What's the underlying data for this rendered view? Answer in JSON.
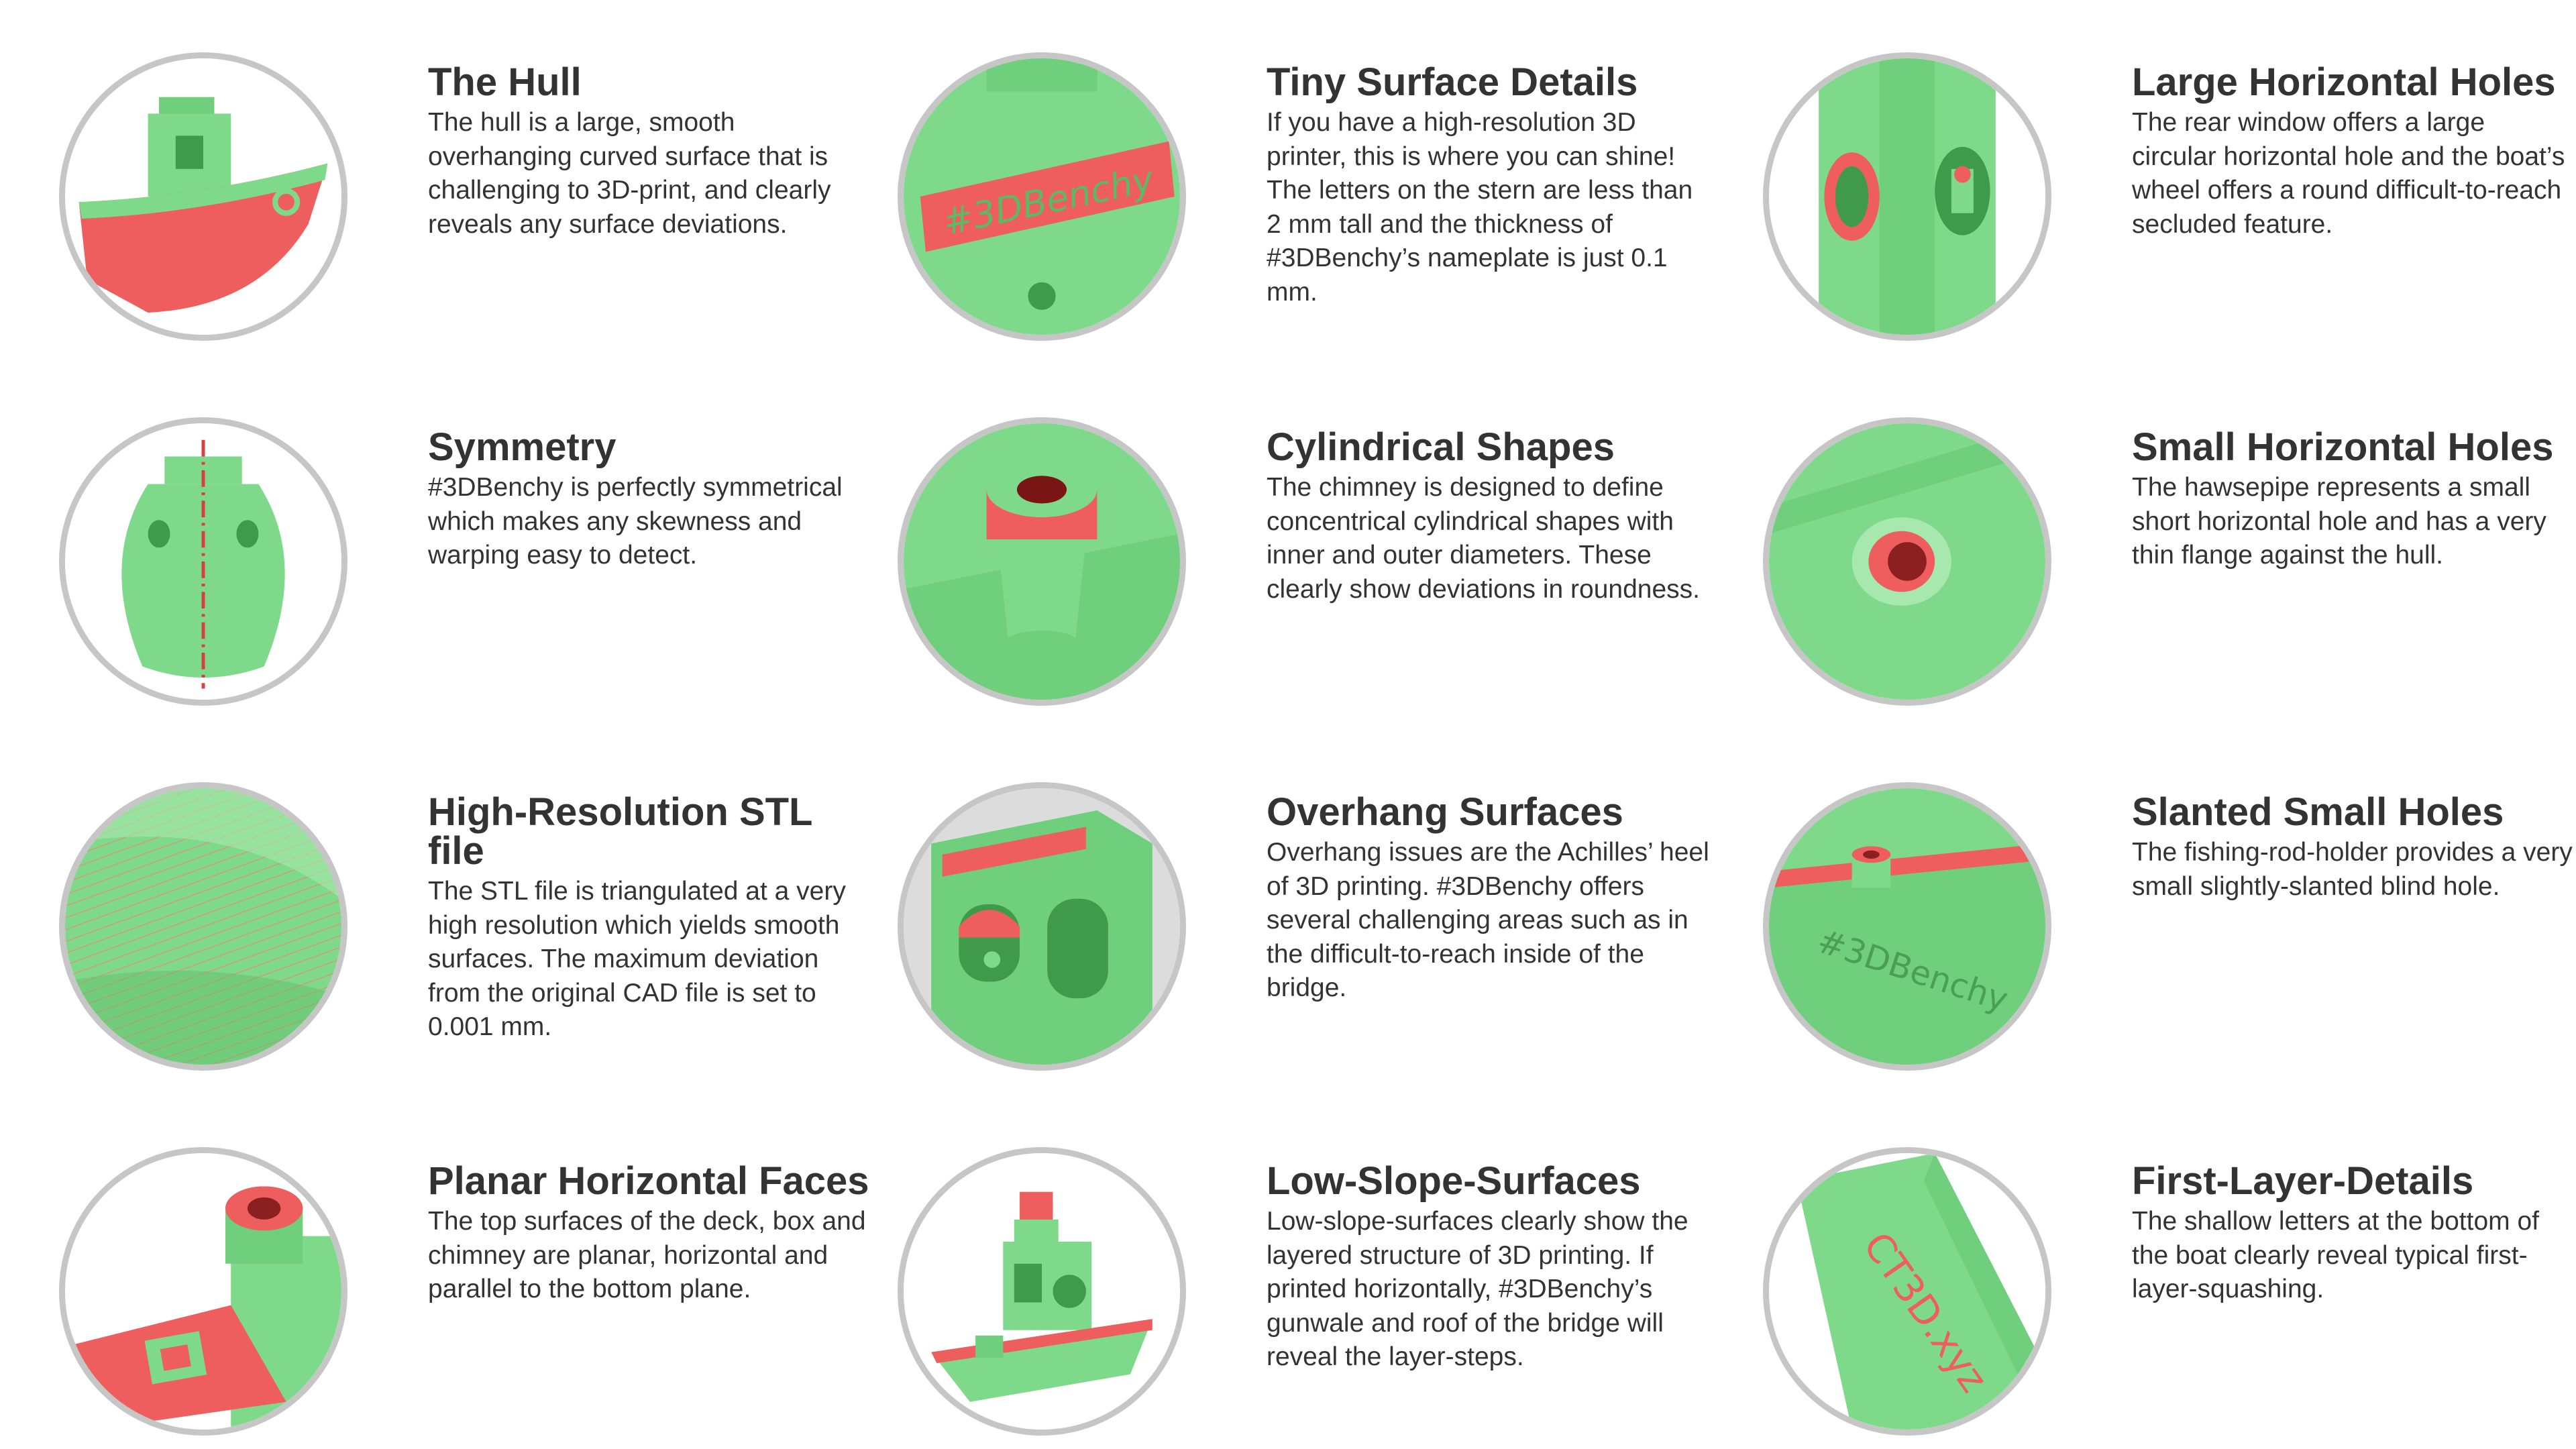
{
  "features": [
    {
      "title": "The Hull",
      "description": "The hull is a large, smooth overhanging curved surface that is challenging to 3D-print, and clearly reveals any surface deviations.",
      "icon": "hull-icon"
    },
    {
      "title": "Tiny Surface Details",
      "description": "If you have a high-resolution 3D printer, this is where you can shine! The letters on the stern are less than 2 mm tall and the thickness of #3DBenchy’s nameplate is just 0.1 mm.",
      "icon": "nameplate-icon",
      "label": "#3DBenchy"
    },
    {
      "title": "Large Horizontal Holes",
      "description": "The rear window offers a large circular horizontal hole and the boat’s wheel offers a round difficult-to-reach secluded feature.",
      "icon": "large-hole-icon"
    },
    {
      "title": "Symmetry",
      "description": "#3DBenchy is perfectly symmetrical which makes any skewness and warping easy to detect.",
      "icon": "symmetry-icon"
    },
    {
      "title": "Cylindrical Shapes",
      "description": "The chimney is designed to define concentrical cylindrical shapes with inner and outer diameters. These clearly show deviations in roundness.",
      "icon": "chimney-icon"
    },
    {
      "title": "Small Horizontal Holes",
      "description": "The hawsepipe represents a small short horizontal hole and has a very thin flange against the hull.",
      "icon": "hawsepipe-icon"
    },
    {
      "title": "High-Resolution STL file",
      "description": "The STL file is triangulated at a very high resolution which yields smooth surfaces. The maximum deviation from the original CAD file is set to 0.001 mm.",
      "icon": "mesh-icon"
    },
    {
      "title": "Overhang Surfaces",
      "description": "Overhang issues are the Achilles’ heel of 3D printing. #3DBenchy offers several challenging areas such as in the difficult-to-reach inside of the bridge.",
      "icon": "overhang-icon"
    },
    {
      "title": "Slanted Small Holes",
      "description": "The fishing-rod-holder provides a very small slightly-slanted blind hole.",
      "icon": "slanted-hole-icon",
      "label": "#3DBenchy"
    },
    {
      "title": "Planar Horizontal Faces",
      "description": "The top surfaces of the deck, box and chimney are planar, horizontal and parallel to the bottom plane.",
      "icon": "planar-faces-icon"
    },
    {
      "title": "Low-Slope-Surfaces",
      "description": "Low-slope-surfaces clearly show the layered structure of 3D printing. If printed horizontally, #3DBenchy’s gunwale and roof of the bridge will reveal the layer-steps.",
      "icon": "low-slope-icon"
    },
    {
      "title": "First-Layer-Details",
      "description": "The shallow letters at the bottom of the boat clearly reveal typical first-layer-squashing.",
      "icon": "first-layer-icon",
      "label": "CT3D.xyz"
    }
  ],
  "colors": {
    "green": "#7fd98a",
    "red": "#ef5e5e",
    "ring": "#c6c6c6",
    "text": "#333333"
  }
}
